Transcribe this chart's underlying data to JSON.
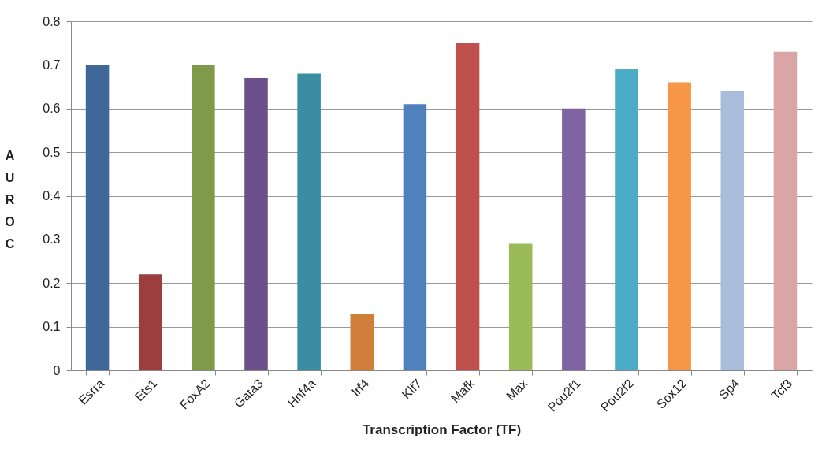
{
  "chart_data": {
    "type": "bar",
    "xlabel": "Transcription Factor (TF)",
    "ylabel": "AUROC",
    "categories": [
      "Esrra",
      "Ets1",
      "FoxA2",
      "Gata3",
      "Hnf4a",
      "Irf4",
      "Klf7",
      "Mafk",
      "Max",
      "Pou2f1",
      "Pou2f2",
      "Sox12",
      "Sp4",
      "Tcf3"
    ],
    "values": [
      0.7,
      0.22,
      0.7,
      0.67,
      0.68,
      0.13,
      0.61,
      0.75,
      0.29,
      0.6,
      0.69,
      0.66,
      0.64,
      0.73
    ],
    "colors": [
      "#3f6898",
      "#9b3e3d",
      "#7f9a48",
      "#6a4f8a",
      "#3a8da3",
      "#d07e3a",
      "#4f81bd",
      "#c0504d",
      "#9bbb59",
      "#8064a2",
      "#4bacc6",
      "#f79646",
      "#a9bcdc",
      "#d9a5a5"
    ],
    "ylim": [
      0,
      0.8
    ],
    "yticks": [
      0,
      0.1,
      0.2,
      0.3,
      0.4,
      0.5,
      0.6,
      0.7,
      0.8
    ],
    "grid": "y"
  }
}
